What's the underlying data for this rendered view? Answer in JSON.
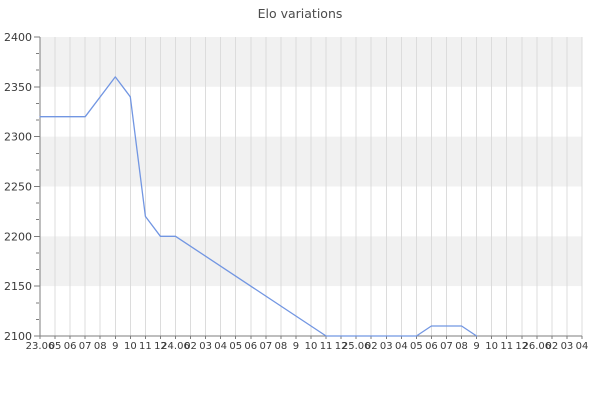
{
  "chart_data": {
    "type": "line",
    "title": "Elo variations",
    "xlabel": "",
    "ylabel": "",
    "ylim": [
      2100,
      2400
    ],
    "y_ticks": [
      2400,
      2350,
      2300,
      2250,
      2200,
      2150,
      2100
    ],
    "y_minor_ticks_per_interval": 2,
    "x_tick_labels": [
      "23.06",
      "05",
      "06",
      "07",
      "08",
      "9",
      "10",
      "11",
      "12",
      "24.06",
      "02",
      "03",
      "04",
      "05",
      "06",
      "07",
      "08",
      "9",
      "10",
      "11",
      "12",
      "25.06",
      "02",
      "03",
      "04",
      "05",
      "06",
      "07",
      "08",
      "9",
      "10",
      "11",
      "12",
      "26.06",
      "02",
      "03",
      "04"
    ],
    "legend": false,
    "layout": {
      "vertical_gridlines": true,
      "horizontal_alternating_bands": true,
      "bands_order_from_top": [
        "gray",
        "white",
        "gray",
        "white",
        "gray",
        "white"
      ]
    },
    "series": [
      {
        "name": "Elo",
        "points_tick_value": [
          [
            0,
            2320
          ],
          [
            3,
            2320
          ],
          [
            5,
            2360
          ],
          [
            6,
            2340
          ],
          [
            7,
            2220
          ],
          [
            8,
            2200
          ],
          [
            9,
            2200
          ],
          [
            19,
            2100
          ],
          [
            25,
            2100
          ],
          [
            26,
            2110
          ],
          [
            28,
            2110
          ],
          [
            29,
            2100
          ]
        ]
      }
    ],
    "colors": {
      "line": "#7296e2",
      "band_gray": "#f1f1f1",
      "band_white": "#ffffff",
      "vertical_grid": "#dcdcdc",
      "axis": "#7d7d7d",
      "tick_text": "#3a3a3a",
      "title_text": "#4b4b4b",
      "background": "#ffffff"
    }
  }
}
